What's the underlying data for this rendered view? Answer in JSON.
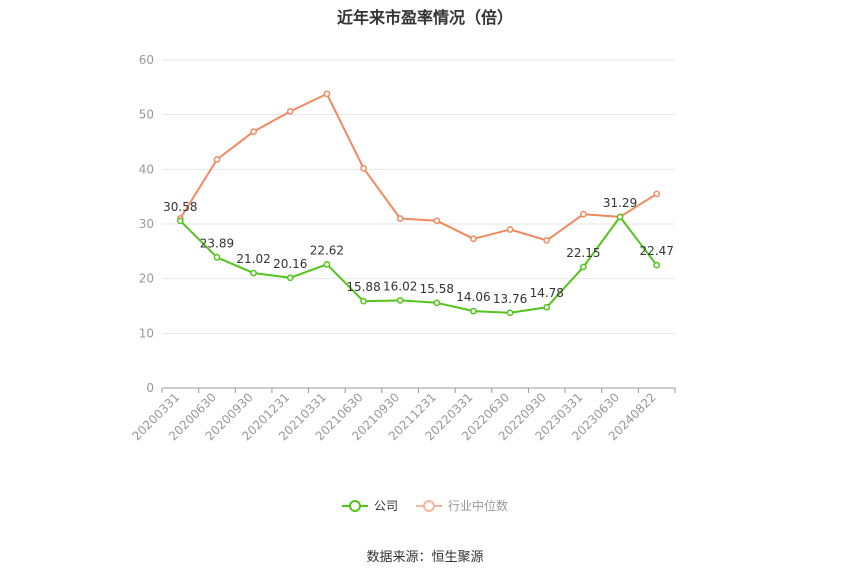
{
  "chart_data": {
    "type": "line",
    "title": "近年来市盈率情况（倍）",
    "categories": [
      "20200331",
      "20200630",
      "20200930",
      "20201231",
      "20210331",
      "20210630",
      "20210930",
      "20211231",
      "20220331",
      "20220630",
      "20220930",
      "20230331",
      "20230630",
      "20240822"
    ],
    "ylim": [
      0,
      60
    ],
    "yticks": [
      0,
      10,
      20,
      30,
      40,
      50,
      60
    ],
    "grid": true,
    "legend_position": "bottom",
    "series": [
      {
        "name": "公司",
        "color": "#52c41a",
        "show_labels": true,
        "values": [
          30.58,
          23.89,
          21.02,
          20.16,
          22.62,
          15.88,
          16.02,
          15.58,
          14.06,
          13.76,
          14.78,
          22.15,
          31.29,
          22.47
        ]
      },
      {
        "name": "行业中位数",
        "color": "#f0895f",
        "show_labels": false,
        "values": [
          31.0,
          41.8,
          46.9,
          50.6,
          53.8,
          40.2,
          31.0,
          30.6,
          27.3,
          29.0,
          27.0,
          31.8,
          31.3,
          35.5
        ]
      }
    ]
  },
  "source_text": "数据来源：恒生聚源"
}
